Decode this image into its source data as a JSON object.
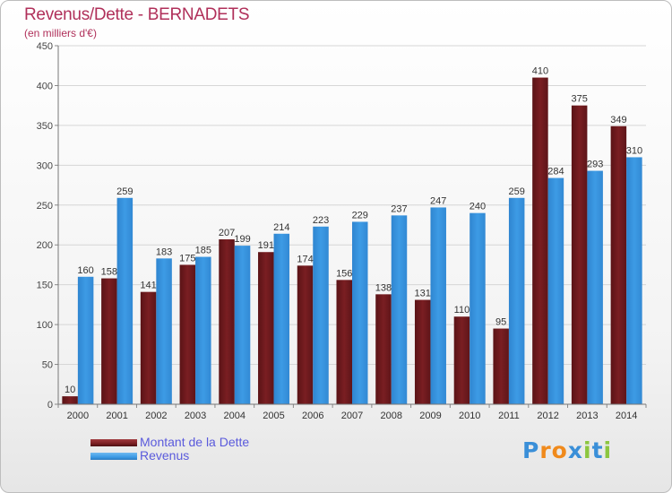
{
  "header": {
    "title": "Revenus/Dette - BERNADETS",
    "subtitle": "(en milliers d'€)"
  },
  "chart_data": {
    "type": "bar",
    "title": "Revenus/Dette - BERNADETS",
    "subtitle": "(en milliers d'€)",
    "xlabel": "",
    "ylabel": "",
    "categories": [
      "2000",
      "2001",
      "2002",
      "2003",
      "2004",
      "2005",
      "2006",
      "2007",
      "2008",
      "2009",
      "2010",
      "2011",
      "2012",
      "2013",
      "2014"
    ],
    "series": [
      {
        "name": "Montant de la Dette",
        "color": "#7a1e22",
        "values": [
          10,
          158,
          141,
          175,
          207,
          191,
          174,
          156,
          138,
          131,
          110,
          95,
          410,
          375,
          349
        ]
      },
      {
        "name": "Revenus",
        "color": "#3d9be5",
        "values": [
          160,
          259,
          183,
          185,
          199,
          214,
          223,
          229,
          237,
          247,
          240,
          259,
          284,
          293,
          310
        ]
      }
    ],
    "ylim": [
      0,
      450
    ],
    "yticks": [
      0,
      50,
      100,
      150,
      200,
      250,
      300,
      350,
      400,
      450
    ],
    "grid": true,
    "legend": "bottom-left",
    "data_labels": true
  },
  "legend": {
    "items": [
      {
        "label": "Montant de la Dette",
        "color": "#7a1e22"
      },
      {
        "label": "Revenus",
        "color": "#3d9be5"
      }
    ]
  },
  "logo": {
    "letters": [
      "P",
      "r",
      "o",
      "x",
      "i",
      "t",
      "i"
    ],
    "colors": [
      "#3a8fd8",
      "#f08a1c",
      "#f08a1c",
      "#3a8fd8",
      "#8cc63f",
      "#3a8fd8",
      "#8cc63f"
    ]
  }
}
